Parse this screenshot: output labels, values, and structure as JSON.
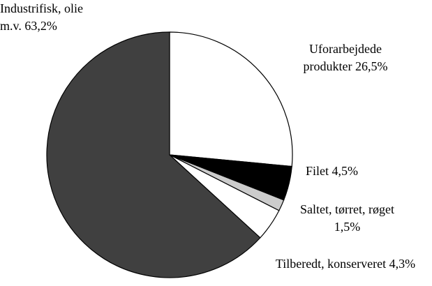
{
  "chart_data": {
    "type": "pie",
    "categories": [
      "Uforarbejdede produkter",
      "Filet",
      "Saltet, tørret, røget",
      "Tilberedt, konserveret",
      "Industrifisk, olie m.v."
    ],
    "values": [
      26.5,
      4.5,
      1.5,
      4.3,
      63.2
    ],
    "value_labels": [
      "26,5%",
      "4,5%",
      "1,5%",
      "4,3%",
      "63,2%"
    ],
    "colors": [
      "#ffffff",
      "#000000",
      "#cccccc",
      "#ffffff",
      "#404040"
    ]
  }
}
